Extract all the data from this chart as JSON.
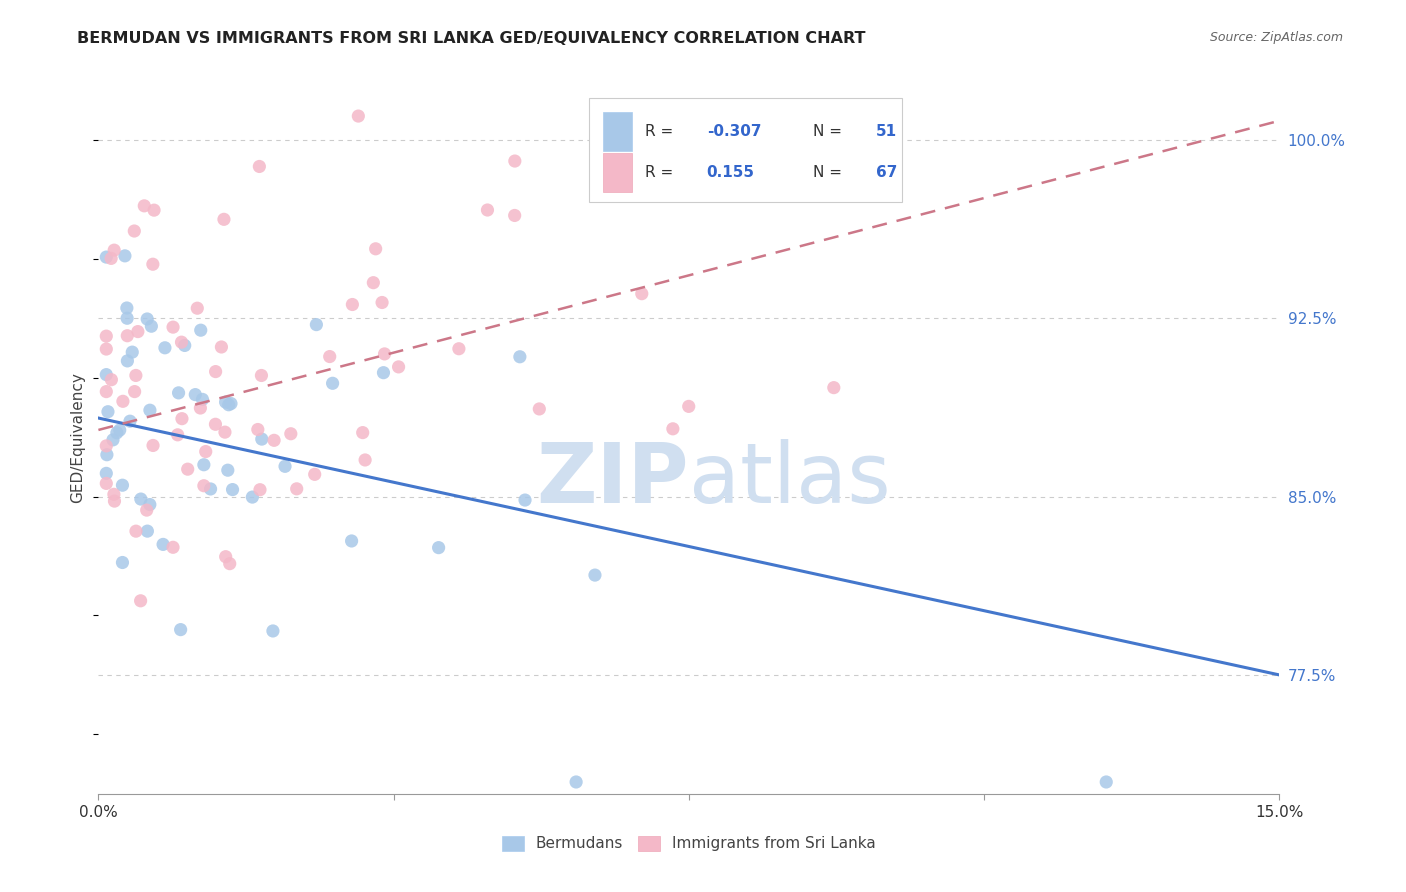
{
  "title": "BERMUDAN VS IMMIGRANTS FROM SRI LANKA GED/EQUIVALENCY CORRELATION CHART",
  "source": "Source: ZipAtlas.com",
  "ylabel": "GED/Equivalency",
  "ytick_labels": [
    "100.0%",
    "92.5%",
    "85.0%",
    "77.5%"
  ],
  "ytick_values": [
    1.0,
    0.925,
    0.85,
    0.775
  ],
  "legend_label_blue": "Bermudans",
  "legend_label_pink": "Immigrants from Sri Lanka",
  "R_blue": "-0.307",
  "N_blue": "51",
  "R_pink": "0.155",
  "N_pink": "67",
  "blue_color": "#a8c8e8",
  "pink_color": "#f4b8c8",
  "blue_line_color": "#4477cc",
  "pink_line_color": "#cc7788",
  "watermark_zip": "ZIP",
  "watermark_atlas": "atlas",
  "watermark_color": "#d0dff0",
  "background_color": "#ffffff",
  "xlim": [
    0.0,
    0.15
  ],
  "ylim": [
    0.725,
    1.025
  ],
  "blue_line_y0": 0.883,
  "blue_line_y1": 0.775,
  "pink_line_y0": 0.878,
  "pink_line_y1": 1.008,
  "grid_color": "#cccccc",
  "spine_color": "#999999"
}
